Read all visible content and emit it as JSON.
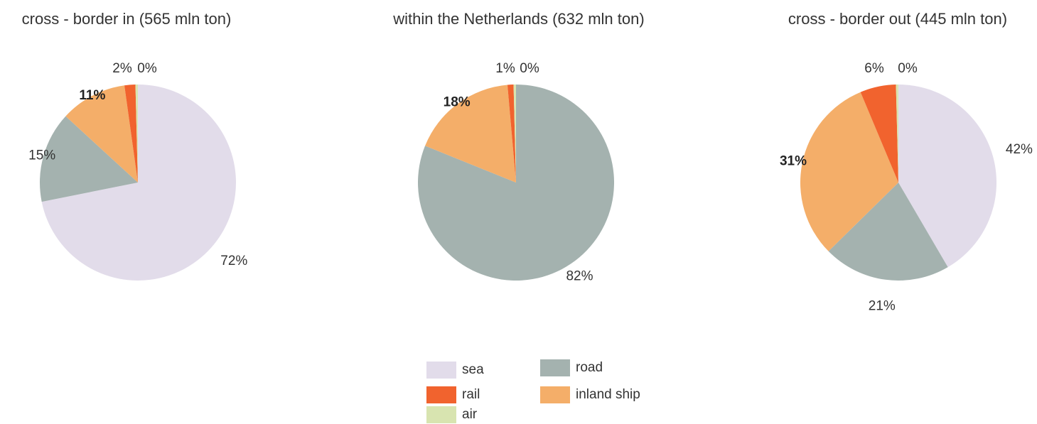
{
  "chart_data": [
    {
      "type": "pie",
      "title": "cross - border in (565 mln ton)",
      "slices": [
        {
          "category": "sea",
          "value": 72,
          "label": "72%",
          "bold": false
        },
        {
          "category": "road",
          "value": 15,
          "label": "15%",
          "bold": false
        },
        {
          "category": "inland ship",
          "value": 11,
          "label": "11%",
          "bold": true
        },
        {
          "category": "rail",
          "value": 1.8,
          "label": "2%",
          "bold": false
        },
        {
          "category": "air",
          "value": 0.4,
          "label": "0%",
          "bold": false
        }
      ]
    },
    {
      "type": "pie",
      "title": "within the Netherlands (632 mln ton)",
      "slices": [
        {
          "category": "sea",
          "value": 0,
          "label": "",
          "bold": false
        },
        {
          "category": "road",
          "value": 81.6,
          "label": "82%",
          "bold": false
        },
        {
          "category": "inland ship",
          "value": 17.6,
          "label": "18%",
          "bold": true
        },
        {
          "category": "rail",
          "value": 1.0,
          "label": "1%",
          "bold": false
        },
        {
          "category": "air",
          "value": 0.4,
          "label": "0%",
          "bold": false
        }
      ]
    },
    {
      "type": "pie",
      "title": "cross - border out (445 mln ton)",
      "slices": [
        {
          "category": "sea",
          "value": 41.5,
          "label": "42%",
          "bold": false
        },
        {
          "category": "road",
          "value": 21,
          "label": "21%",
          "bold": false
        },
        {
          "category": "inland ship",
          "value": 31,
          "label": "31%",
          "bold": true
        },
        {
          "category": "rail",
          "value": 5.9,
          "label": "6%",
          "bold": false
        },
        {
          "category": "air",
          "value": 0.4,
          "label": "0%",
          "bold": false
        }
      ]
    }
  ],
  "legend": {
    "items": [
      {
        "key": "sea",
        "label": "sea",
        "color": "#e2dcea"
      },
      {
        "key": "road",
        "label": "road",
        "color": "#a4b2af"
      },
      {
        "key": "rail",
        "label": "rail",
        "color": "#f1632e"
      },
      {
        "key": "inland ship",
        "label": "inland ship",
        "color": "#f4ae69"
      },
      {
        "key": "air",
        "label": "air",
        "color": "#d8e4b0"
      }
    ]
  },
  "colors": {
    "sea": "#e2dcea",
    "road": "#a4b2af",
    "rail": "#f1632e",
    "inland ship": "#f4ae69",
    "air": "#d8e4b0"
  }
}
